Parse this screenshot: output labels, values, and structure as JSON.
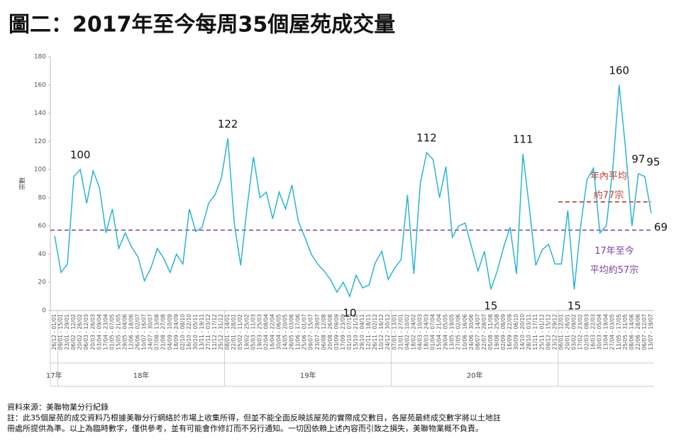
{
  "chart_data": {
    "type": "line",
    "title": "圖二：2017年至今每周35個屋苑成交量",
    "y_label": "宗數",
    "categories": [
      "26/12 - 01/01",
      "09/01 - 15/01",
      "23/01 - 29/01",
      "06/02 - 12/02",
      "20/02 - 26/02",
      "06/03 - 12/03",
      "20/03 - 26/03",
      "03/04 - 09/04",
      "17/04 - 23/04",
      "01/05 - 07/05",
      "15/05 - 21/05",
      "29/05 - 04/06",
      "12/06 - 18/06",
      "26/06 - 02/07",
      "10/07 - 16/07",
      "24/07 - 30/07",
      "07/08 - 13/08",
      "21/08 - 27/08",
      "04/09 - 10/09",
      "18/09 - 24/09",
      "02/10 - 08/10",
      "16/10 - 22/10",
      "30/10 - 05/11",
      "13/11 - 19/11",
      "27/11 - 03/12",
      "11/12 - 17/12",
      "25/12 - 31/12",
      "08/01 - 14/01",
      "22/01 - 28/01",
      "05/02 - 11/02",
      "19/02 - 25/02",
      "05/03 - 11/03",
      "19/03 - 25/03",
      "02/04 - 08/04",
      "16/04 - 22/04",
      "30/04 - 06/05",
      "14/05 - 20/05",
      "28/05 - 03/06",
      "11/06 - 17/06",
      "25/06 - 01/07",
      "09/07 - 15/07",
      "23/07 - 29/07",
      "06/08 - 12/08",
      "20/08 - 26/08",
      "03/09 - 09/09",
      "17/09 - 23/09",
      "01/10 - 07/10",
      "15/10 - 21/10",
      "29/10 - 04/11",
      "12/11 - 18/11",
      "26/11 - 02/12",
      "10/12 - 16/12",
      "24/12 - 30/12",
      "07/01 - 13/01",
      "21/01 - 27/01",
      "04/02 - 10/02",
      "18/02 - 24/02",
      "04/03 - 10/03",
      "18/03 - 24/03",
      "01/04 - 07/04",
      "15/04 - 21/04",
      "29/04 - 05/05",
      "13/05 - 19/05",
      "27/05 - 02/06",
      "10/06 - 16/06",
      "24/06 - 30/06",
      "08/07 - 14/07",
      "22/07 - 28/07",
      "05/08 - 11/08",
      "19/08 - 25/08",
      "02/09 - 08/09",
      "16/09 - 22/09",
      "30/09 - 06/10",
      "14/10 - 20/10",
      "28/10 - 03/11",
      "11/11 - 17/11",
      "25/11 - 01/12",
      "09/12 - 15/12",
      "23/12 - 29/12",
      "06/01 - 12/01",
      "20/01 - 26/01",
      "03/02 - 09/02",
      "17/02 - 23/02",
      "02/03 - 08/03",
      "16/03 - 22/03",
      "30/03 - 05/04",
      "13/04 - 19/04",
      "27/04 - 03/05",
      "11/05 - 17/05",
      "25/05 - 31/05",
      "08/06 - 14/06",
      "22/06 - 28/06",
      "06/07 - 12/07",
      "13/07 - 19/07"
    ],
    "year_groups": [
      "17年",
      "18年",
      "19年",
      "20年"
    ],
    "values": [
      53,
      27,
      33,
      95,
      100,
      76,
      99,
      87,
      55,
      72,
      44,
      55,
      45,
      38,
      21,
      30,
      44,
      37,
      27,
      40,
      33,
      72,
      56,
      59,
      76,
      82,
      94,
      122,
      62,
      32,
      73,
      109,
      80,
      84,
      65,
      84,
      72,
      89,
      63,
      52,
      40,
      33,
      28,
      22,
      13,
      20,
      10,
      25,
      16,
      18,
      34,
      42,
      22,
      30,
      36,
      82,
      26,
      90,
      112,
      107,
      80,
      102,
      52,
      60,
      62,
      45,
      28,
      42,
      15,
      28,
      45,
      59,
      26,
      111,
      73,
      32,
      43,
      47,
      33,
      33,
      71,
      15,
      60,
      93,
      101,
      55,
      60,
      100,
      160,
      115,
      60,
      97,
      95,
      69
    ],
    "value_labels": [
      null,
      null,
      null,
      null,
      "100",
      null,
      null,
      null,
      null,
      null,
      null,
      null,
      null,
      null,
      null,
      null,
      null,
      null,
      null,
      null,
      null,
      null,
      null,
      null,
      null,
      null,
      null,
      "122",
      null,
      null,
      null,
      null,
      null,
      null,
      null,
      null,
      null,
      null,
      null,
      null,
      null,
      null,
      null,
      null,
      null,
      null,
      "10",
      null,
      null,
      null,
      null,
      null,
      null,
      null,
      null,
      null,
      null,
      null,
      "112",
      null,
      null,
      null,
      null,
      null,
      null,
      null,
      null,
      null,
      "15",
      null,
      null,
      null,
      null,
      "111",
      null,
      null,
      null,
      null,
      null,
      null,
      null,
      "15",
      null,
      null,
      null,
      null,
      null,
      null,
      "160",
      null,
      null,
      "97",
      "95",
      "69"
    ],
    "color": "#2bb3d6",
    "ylim": [
      0,
      180
    ],
    "yticks": [
      0,
      20,
      40,
      60,
      80,
      100,
      120,
      140,
      160,
      180
    ],
    "reference_lines": [
      {
        "value": 57,
        "color": "#7b3fa0",
        "range": "all",
        "label": [
          "17年至今",
          "平均約57宗"
        ]
      },
      {
        "value": 77,
        "color": "#c0392b",
        "range": "latest_year",
        "label": [
          "年內平均",
          "約77宗"
        ]
      }
    ],
    "notes": [
      "資料來源：美聯物業分行紀錄",
      "註：此35個屋苑的成交資料乃根據美聯分行網絡於市場上收集所得，但並不能全面反映該屋苑的實際成交數目，各屋苑最終成交數字將以土地註",
      "冊處所提供為準。以上為臨時數字，僅供參考，並有可能會作修訂而不另行通知。一切因依賴上述內容而引致之損失，美聯物業概不負責。"
    ]
  }
}
